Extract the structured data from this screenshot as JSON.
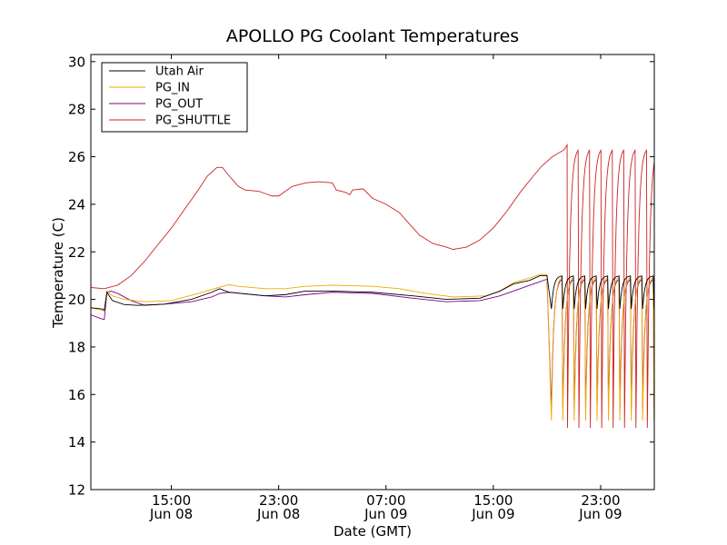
{
  "chart_data": {
    "type": "line",
    "title": "APOLLO PG Coolant Temperatures",
    "xlabel": "Date (GMT)",
    "ylabel": "Temperature (C)",
    "xlim": [
      0,
      42
    ],
    "ylim": [
      12,
      30.3
    ],
    "x_unit": "hours since Jun 08 09:00 GMT",
    "yticks": [
      12,
      14,
      16,
      18,
      20,
      22,
      24,
      26,
      28,
      30
    ],
    "xticks": [
      {
        "x": 6,
        "time": "15:00",
        "date": "Jun 08"
      },
      {
        "x": 14,
        "time": "23:00",
        "date": "Jun 08"
      },
      {
        "x": 22,
        "time": "07:00",
        "date": "Jun 09"
      },
      {
        "x": 30,
        "time": "15:00",
        "date": "Jun 09"
      },
      {
        "x": 38,
        "time": "23:00",
        "date": "Jun 09"
      }
    ],
    "legend_position": "top-left",
    "grid": false,
    "series": [
      {
        "name": "Utah Air",
        "color": "#000000",
        "points": [
          [
            0,
            19.65
          ],
          [
            0.8,
            19.6
          ],
          [
            1.0,
            19.55
          ],
          [
            1.2,
            20.3
          ],
          [
            1.6,
            19.95
          ],
          [
            2.5,
            19.78
          ],
          [
            3.5,
            19.75
          ],
          [
            5.5,
            19.8
          ],
          [
            7.5,
            20.0
          ],
          [
            9.0,
            20.3
          ],
          [
            9.6,
            20.45
          ],
          [
            10.3,
            20.3
          ],
          [
            13,
            20.15
          ],
          [
            14.5,
            20.2
          ],
          [
            16,
            20.35
          ],
          [
            18,
            20.35
          ],
          [
            21,
            20.3
          ],
          [
            24,
            20.15
          ],
          [
            26.5,
            20.0
          ],
          [
            29,
            20.05
          ],
          [
            30.5,
            20.35
          ],
          [
            31.5,
            20.65
          ],
          [
            32.7,
            20.8
          ],
          [
            33.5,
            21.0
          ],
          [
            34.0,
            21.0
          ]
        ],
        "cycles": {
          "start": 34.3,
          "period": 0.85,
          "count": 10,
          "high": 21.0,
          "low": 19.6
        }
      },
      {
        "name": "PG_IN",
        "color": "#eeaa00",
        "points": [
          [
            0,
            19.65
          ],
          [
            0.8,
            19.55
          ],
          [
            1.0,
            19.5
          ],
          [
            1.2,
            20.35
          ],
          [
            1.6,
            20.15
          ],
          [
            2.5,
            20.0
          ],
          [
            4,
            19.9
          ],
          [
            6,
            19.95
          ],
          [
            8,
            20.25
          ],
          [
            9.5,
            20.5
          ],
          [
            10.3,
            20.62
          ],
          [
            11,
            20.55
          ],
          [
            13,
            20.45
          ],
          [
            14.5,
            20.45
          ],
          [
            16,
            20.55
          ],
          [
            18,
            20.6
          ],
          [
            21,
            20.55
          ],
          [
            23,
            20.45
          ],
          [
            25,
            20.25
          ],
          [
            27,
            20.1
          ],
          [
            29.5,
            20.15
          ],
          [
            30.5,
            20.35
          ],
          [
            31.5,
            20.7
          ],
          [
            32.7,
            20.9
          ],
          [
            33.5,
            21.05
          ],
          [
            34.0,
            21.05
          ]
        ],
        "cycles": {
          "start": 34.3,
          "period": 0.85,
          "count": 10,
          "high": 21.0,
          "low": 14.9
        }
      },
      {
        "name": "PG_OUT",
        "color": "#800080",
        "points": [
          [
            0,
            19.35
          ],
          [
            0.7,
            19.2
          ],
          [
            1.0,
            19.15
          ],
          [
            1.2,
            20.3
          ],
          [
            1.5,
            20.35
          ],
          [
            2.0,
            20.25
          ],
          [
            3,
            19.95
          ],
          [
            4,
            19.75
          ],
          [
            5.5,
            19.8
          ],
          [
            7.5,
            19.9
          ],
          [
            9,
            20.1
          ],
          [
            9.6,
            20.25
          ],
          [
            10.3,
            20.3
          ],
          [
            13,
            20.15
          ],
          [
            14.5,
            20.1
          ],
          [
            16,
            20.2
          ],
          [
            18,
            20.3
          ],
          [
            21,
            20.25
          ],
          [
            24,
            20.05
          ],
          [
            26.5,
            19.9
          ],
          [
            29,
            19.95
          ],
          [
            30.5,
            20.15
          ],
          [
            32,
            20.45
          ],
          [
            33,
            20.65
          ],
          [
            34.0,
            20.85
          ]
        ],
        "cycles": {
          "start": 34.3,
          "period": 0.85,
          "count": 10,
          "high": 20.9,
          "low": 15.4
        }
      },
      {
        "name": "PG_SHUTTLE",
        "color": "#cc2222",
        "points": [
          [
            0,
            20.5
          ],
          [
            1.0,
            20.45
          ],
          [
            2,
            20.6
          ],
          [
            3,
            21.0
          ],
          [
            4,
            21.6
          ],
          [
            5,
            22.3
          ],
          [
            6,
            23.0
          ],
          [
            7,
            23.8
          ],
          [
            8,
            24.6
          ],
          [
            8.7,
            25.2
          ],
          [
            9.4,
            25.55
          ],
          [
            9.8,
            25.55
          ],
          [
            10.3,
            25.2
          ],
          [
            11,
            24.75
          ],
          [
            11.5,
            24.6
          ],
          [
            12.5,
            24.55
          ],
          [
            13,
            24.45
          ],
          [
            13.5,
            24.35
          ],
          [
            14,
            24.35
          ],
          [
            14.5,
            24.55
          ],
          [
            15,
            24.75
          ],
          [
            16,
            24.9
          ],
          [
            17,
            24.95
          ],
          [
            18.0,
            24.9
          ],
          [
            18.3,
            24.6
          ],
          [
            19,
            24.5
          ],
          [
            19.3,
            24.4
          ],
          [
            19.5,
            24.6
          ],
          [
            20.3,
            24.65
          ],
          [
            21,
            24.25
          ],
          [
            22,
            24.0
          ],
          [
            23,
            23.65
          ],
          [
            23.7,
            23.2
          ],
          [
            24.5,
            22.7
          ],
          [
            25.5,
            22.35
          ],
          [
            26.5,
            22.2
          ],
          [
            27,
            22.1
          ],
          [
            28,
            22.2
          ],
          [
            29,
            22.5
          ],
          [
            30,
            23.0
          ],
          [
            31,
            23.7
          ],
          [
            32,
            24.5
          ],
          [
            33,
            25.2
          ],
          [
            33.6,
            25.6
          ],
          [
            34.4,
            26.0
          ],
          [
            35.3,
            26.3
          ],
          [
            35.5,
            26.5
          ]
        ],
        "cycles": {
          "start": 35.5,
          "period": 0.85,
          "count": 10,
          "high": 26.4,
          "low": 14.6
        }
      }
    ]
  }
}
